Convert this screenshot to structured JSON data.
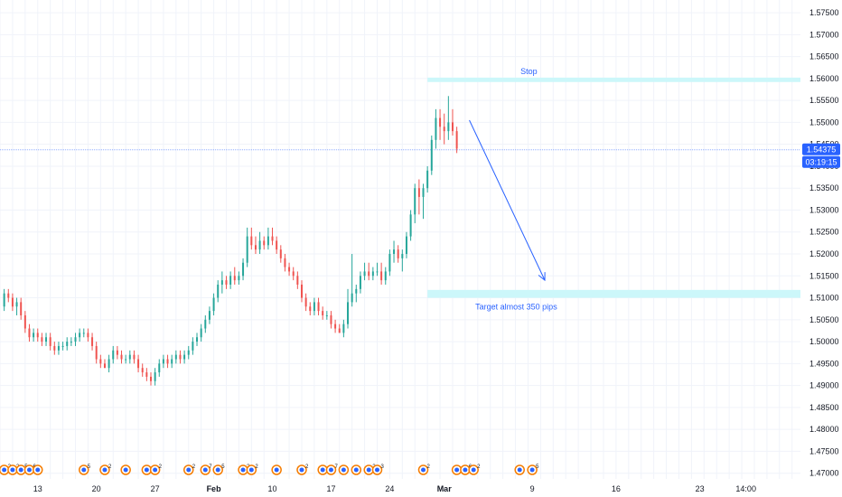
{
  "chart_data": {
    "type": "candlestick",
    "y_ticks": [
      1.47,
      1.475,
      1.48,
      1.485,
      1.49,
      1.495,
      1.5,
      1.505,
      1.51,
      1.515,
      1.52,
      1.525,
      1.53,
      1.535,
      1.54,
      1.545,
      1.55,
      1.555,
      1.56,
      1.565,
      1.57,
      1.575
    ],
    "y_tick_labels": [
      "1.47000",
      "1.47500",
      "1.48000",
      "1.48500",
      "1.49000",
      "1.49500",
      "1.50000",
      "1.50500",
      "1.51000",
      "1.51500",
      "1.52000",
      "1.52500",
      "1.53000",
      "1.53500",
      "1.54000",
      "1.54500",
      "1.55000",
      "1.55500",
      "1.56000",
      "1.56500",
      "1.57000",
      "1.57500"
    ],
    "ylim": [
      1.4687,
      1.5779
    ],
    "x_ticks": [
      {
        "label": "13",
        "bar": 8,
        "bold": false
      },
      {
        "label": "20",
        "bar": 22,
        "bold": false
      },
      {
        "label": "27",
        "bar": 36,
        "bold": false
      },
      {
        "label": "Feb",
        "bar": 50,
        "bold": true
      },
      {
        "label": "10",
        "bar": 64,
        "bold": false
      },
      {
        "label": "17",
        "bar": 78,
        "bold": false
      },
      {
        "label": "24",
        "bar": 92,
        "bold": false
      },
      {
        "label": "Mar",
        "bar": 105,
        "bold": true
      },
      {
        "label": "9",
        "bar": 126,
        "bold": false
      },
      {
        "label": "16",
        "bar": 146,
        "bold": false
      },
      {
        "label": "23",
        "bar": 166,
        "bold": false
      },
      {
        "label": "14:00",
        "bar": 177,
        "bold": false
      }
    ],
    "x_range_bars": [
      -1,
      190
    ],
    "current_price": {
      "label": "1.54375",
      "value": 1.54375,
      "countdown": "03:19:15"
    },
    "candles": [
      {
        "o": 1.508,
        "h": 1.512,
        "l": 1.507,
        "c": 1.511
      },
      {
        "o": 1.511,
        "h": 1.512,
        "l": 1.509,
        "c": 1.51
      },
      {
        "o": 1.51,
        "h": 1.511,
        "l": 1.507,
        "c": 1.508
      },
      {
        "o": 1.508,
        "h": 1.51,
        "l": 1.506,
        "c": 1.509
      },
      {
        "o": 1.509,
        "h": 1.51,
        "l": 1.505,
        "c": 1.506
      },
      {
        "o": 1.506,
        "h": 1.507,
        "l": 1.502,
        "c": 1.503
      },
      {
        "o": 1.503,
        "h": 1.504,
        "l": 1.5,
        "c": 1.501
      },
      {
        "o": 1.501,
        "h": 1.503,
        "l": 1.5,
        "c": 1.502
      },
      {
        "o": 1.502,
        "h": 1.503,
        "l": 1.5,
        "c": 1.501
      },
      {
        "o": 1.501,
        "h": 1.502,
        "l": 1.499,
        "c": 1.5
      },
      {
        "o": 1.5,
        "h": 1.502,
        "l": 1.499,
        "c": 1.501
      },
      {
        "o": 1.501,
        "h": 1.502,
        "l": 1.498,
        "c": 1.499
      },
      {
        "o": 1.499,
        "h": 1.5,
        "l": 1.497,
        "c": 1.498
      },
      {
        "o": 1.498,
        "h": 1.5,
        "l": 1.497,
        "c": 1.499
      },
      {
        "o": 1.499,
        "h": 1.5,
        "l": 1.498,
        "c": 1.499
      },
      {
        "o": 1.499,
        "h": 1.501,
        "l": 1.498,
        "c": 1.5
      },
      {
        "o": 1.5,
        "h": 1.501,
        "l": 1.499,
        "c": 1.5
      },
      {
        "o": 1.5,
        "h": 1.502,
        "l": 1.499,
        "c": 1.501
      },
      {
        "o": 1.501,
        "h": 1.503,
        "l": 1.5,
        "c": 1.502
      },
      {
        "o": 1.502,
        "h": 1.503,
        "l": 1.501,
        "c": 1.502
      },
      {
        "o": 1.502,
        "h": 1.503,
        "l": 1.5,
        "c": 1.501
      },
      {
        "o": 1.501,
        "h": 1.502,
        "l": 1.498,
        "c": 1.499
      },
      {
        "o": 1.499,
        "h": 1.5,
        "l": 1.495,
        "c": 1.496
      },
      {
        "o": 1.496,
        "h": 1.497,
        "l": 1.494,
        "c": 1.495
      },
      {
        "o": 1.495,
        "h": 1.496,
        "l": 1.494,
        "c": 1.494
      },
      {
        "o": 1.494,
        "h": 1.497,
        "l": 1.493,
        "c": 1.496
      },
      {
        "o": 1.496,
        "h": 1.499,
        "l": 1.495,
        "c": 1.498
      },
      {
        "o": 1.498,
        "h": 1.499,
        "l": 1.496,
        "c": 1.497
      },
      {
        "o": 1.497,
        "h": 1.498,
        "l": 1.495,
        "c": 1.496
      },
      {
        "o": 1.496,
        "h": 1.497,
        "l": 1.495,
        "c": 1.496
      },
      {
        "o": 1.496,
        "h": 1.498,
        "l": 1.495,
        "c": 1.497
      },
      {
        "o": 1.497,
        "h": 1.498,
        "l": 1.495,
        "c": 1.496
      },
      {
        "o": 1.496,
        "h": 1.497,
        "l": 1.493,
        "c": 1.494
      },
      {
        "o": 1.494,
        "h": 1.495,
        "l": 1.492,
        "c": 1.493
      },
      {
        "o": 1.493,
        "h": 1.494,
        "l": 1.491,
        "c": 1.492
      },
      {
        "o": 1.492,
        "h": 1.493,
        "l": 1.49,
        "c": 1.491
      },
      {
        "o": 1.491,
        "h": 1.494,
        "l": 1.49,
        "c": 1.493
      },
      {
        "o": 1.493,
        "h": 1.496,
        "l": 1.492,
        "c": 1.495
      },
      {
        "o": 1.495,
        "h": 1.497,
        "l": 1.494,
        "c": 1.496
      },
      {
        "o": 1.496,
        "h": 1.497,
        "l": 1.494,
        "c": 1.495
      },
      {
        "o": 1.495,
        "h": 1.497,
        "l": 1.494,
        "c": 1.496
      },
      {
        "o": 1.496,
        "h": 1.498,
        "l": 1.495,
        "c": 1.497
      },
      {
        "o": 1.497,
        "h": 1.498,
        "l": 1.495,
        "c": 1.496
      },
      {
        "o": 1.496,
        "h": 1.498,
        "l": 1.495,
        "c": 1.497
      },
      {
        "o": 1.497,
        "h": 1.499,
        "l": 1.496,
        "c": 1.498
      },
      {
        "o": 1.498,
        "h": 1.501,
        "l": 1.497,
        "c": 1.5
      },
      {
        "o": 1.5,
        "h": 1.502,
        "l": 1.499,
        "c": 1.501
      },
      {
        "o": 1.501,
        "h": 1.504,
        "l": 1.5,
        "c": 1.503
      },
      {
        "o": 1.503,
        "h": 1.506,
        "l": 1.502,
        "c": 1.505
      },
      {
        "o": 1.505,
        "h": 1.508,
        "l": 1.504,
        "c": 1.507
      },
      {
        "o": 1.507,
        "h": 1.511,
        "l": 1.506,
        "c": 1.51
      },
      {
        "o": 1.51,
        "h": 1.514,
        "l": 1.509,
        "c": 1.513
      },
      {
        "o": 1.513,
        "h": 1.516,
        "l": 1.511,
        "c": 1.514
      },
      {
        "o": 1.514,
        "h": 1.515,
        "l": 1.512,
        "c": 1.513
      },
      {
        "o": 1.513,
        "h": 1.516,
        "l": 1.512,
        "c": 1.515
      },
      {
        "o": 1.515,
        "h": 1.517,
        "l": 1.513,
        "c": 1.514
      },
      {
        "o": 1.514,
        "h": 1.516,
        "l": 1.513,
        "c": 1.515
      },
      {
        "o": 1.515,
        "h": 1.519,
        "l": 1.514,
        "c": 1.518
      },
      {
        "o": 1.518,
        "h": 1.526,
        "l": 1.517,
        "c": 1.524
      },
      {
        "o": 1.524,
        "h": 1.526,
        "l": 1.521,
        "c": 1.522
      },
      {
        "o": 1.522,
        "h": 1.524,
        "l": 1.52,
        "c": 1.521
      },
      {
        "o": 1.521,
        "h": 1.525,
        "l": 1.52,
        "c": 1.523
      },
      {
        "o": 1.523,
        "h": 1.524,
        "l": 1.521,
        "c": 1.522
      },
      {
        "o": 1.522,
        "h": 1.526,
        "l": 1.521,
        "c": 1.524
      },
      {
        "o": 1.524,
        "h": 1.526,
        "l": 1.522,
        "c": 1.523
      },
      {
        "o": 1.523,
        "h": 1.524,
        "l": 1.52,
        "c": 1.521
      },
      {
        "o": 1.521,
        "h": 1.522,
        "l": 1.518,
        "c": 1.519
      },
      {
        "o": 1.519,
        "h": 1.52,
        "l": 1.516,
        "c": 1.517
      },
      {
        "o": 1.517,
        "h": 1.518,
        "l": 1.515,
        "c": 1.516
      },
      {
        "o": 1.516,
        "h": 1.517,
        "l": 1.514,
        "c": 1.515
      },
      {
        "o": 1.515,
        "h": 1.516,
        "l": 1.512,
        "c": 1.513
      },
      {
        "o": 1.513,
        "h": 1.514,
        "l": 1.509,
        "c": 1.51
      },
      {
        "o": 1.51,
        "h": 1.511,
        "l": 1.507,
        "c": 1.508
      },
      {
        "o": 1.508,
        "h": 1.509,
        "l": 1.506,
        "c": 1.507
      },
      {
        "o": 1.507,
        "h": 1.51,
        "l": 1.506,
        "c": 1.509
      },
      {
        "o": 1.509,
        "h": 1.51,
        "l": 1.506,
        "c": 1.507
      },
      {
        "o": 1.507,
        "h": 1.508,
        "l": 1.505,
        "c": 1.506
      },
      {
        "o": 1.506,
        "h": 1.507,
        "l": 1.505,
        "c": 1.506
      },
      {
        "o": 1.506,
        "h": 1.507,
        "l": 1.503,
        "c": 1.504
      },
      {
        "o": 1.504,
        "h": 1.505,
        "l": 1.502,
        "c": 1.503
      },
      {
        "o": 1.503,
        "h": 1.504,
        "l": 1.502,
        "c": 1.502
      },
      {
        "o": 1.502,
        "h": 1.505,
        "l": 1.501,
        "c": 1.504
      },
      {
        "o": 1.504,
        "h": 1.512,
        "l": 1.503,
        "c": 1.509
      },
      {
        "o": 1.509,
        "h": 1.52,
        "l": 1.508,
        "c": 1.511
      },
      {
        "o": 1.511,
        "h": 1.513,
        "l": 1.509,
        "c": 1.512
      },
      {
        "o": 1.512,
        "h": 1.516,
        "l": 1.511,
        "c": 1.515
      },
      {
        "o": 1.515,
        "h": 1.518,
        "l": 1.514,
        "c": 1.516
      },
      {
        "o": 1.516,
        "h": 1.518,
        "l": 1.514,
        "c": 1.515
      },
      {
        "o": 1.515,
        "h": 1.517,
        "l": 1.514,
        "c": 1.516
      },
      {
        "o": 1.516,
        "h": 1.518,
        "l": 1.515,
        "c": 1.516
      },
      {
        "o": 1.516,
        "h": 1.518,
        "l": 1.513,
        "c": 1.514
      },
      {
        "o": 1.514,
        "h": 1.517,
        "l": 1.513,
        "c": 1.516
      },
      {
        "o": 1.516,
        "h": 1.521,
        "l": 1.515,
        "c": 1.52
      },
      {
        "o": 1.52,
        "h": 1.523,
        "l": 1.518,
        "c": 1.521
      },
      {
        "o": 1.521,
        "h": 1.522,
        "l": 1.518,
        "c": 1.519
      },
      {
        "o": 1.519,
        "h": 1.521,
        "l": 1.516,
        "c": 1.52
      },
      {
        "o": 1.52,
        "h": 1.525,
        "l": 1.519,
        "c": 1.524
      },
      {
        "o": 1.524,
        "h": 1.53,
        "l": 1.523,
        "c": 1.529
      },
      {
        "o": 1.529,
        "h": 1.536,
        "l": 1.527,
        "c": 1.535
      },
      {
        "o": 1.535,
        "h": 1.537,
        "l": 1.529,
        "c": 1.533
      },
      {
        "o": 1.533,
        "h": 1.536,
        "l": 1.528,
        "c": 1.535
      },
      {
        "o": 1.535,
        "h": 1.54,
        "l": 1.534,
        "c": 1.539
      },
      {
        "o": 1.539,
        "h": 1.547,
        "l": 1.538,
        "c": 1.546
      },
      {
        "o": 1.546,
        "h": 1.553,
        "l": 1.544,
        "c": 1.551
      },
      {
        "o": 1.551,
        "h": 1.553,
        "l": 1.546,
        "c": 1.549
      },
      {
        "o": 1.549,
        "h": 1.552,
        "l": 1.545,
        "c": 1.548
      },
      {
        "o": 1.548,
        "h": 1.556,
        "l": 1.546,
        "c": 1.55
      },
      {
        "o": 1.55,
        "h": 1.553,
        "l": 1.547,
        "c": 1.548
      },
      {
        "o": 1.548,
        "h": 1.549,
        "l": 1.543,
        "c": 1.544
      }
    ],
    "annotations": {
      "stop_zone": {
        "label": "Stop",
        "from": 1.5592,
        "to": 1.5602,
        "x_start_bar": 101
      },
      "target_zone": {
        "label": "Target almost 350 pips",
        "from": 1.51,
        "to": 1.5118,
        "x_start_bar": 101
      },
      "arrow": {
        "from_bar": 111,
        "from_price": 1.5505,
        "to_bar": 129,
        "to_price": 1.514
      }
    },
    "event_markers": [
      {
        "bar": 0,
        "text": "2"
      },
      {
        "bar": 2,
        "text": "2"
      },
      {
        "bar": 4,
        "text": "5"
      },
      {
        "bar": 6,
        "text": "6"
      },
      {
        "bar": 8,
        "text": ""
      },
      {
        "bar": 19,
        "text": "5"
      },
      {
        "bar": 24,
        "text": "2"
      },
      {
        "bar": 29,
        "text": ""
      },
      {
        "bar": 34,
        "text": ""
      },
      {
        "bar": 36,
        "text": "2"
      },
      {
        "bar": 44,
        "text": "2"
      },
      {
        "bar": 48,
        "text": "7"
      },
      {
        "bar": 51,
        "text": "5"
      },
      {
        "bar": 57,
        "text": "2"
      },
      {
        "bar": 59,
        "text": "2"
      },
      {
        "bar": 65,
        "text": ""
      },
      {
        "bar": 71,
        "text": "2"
      },
      {
        "bar": 76,
        "text": ""
      },
      {
        "bar": 78,
        "text": "7"
      },
      {
        "bar": 81,
        "text": ""
      },
      {
        "bar": 84,
        "text": ""
      },
      {
        "bar": 87,
        "text": "2"
      },
      {
        "bar": 89,
        "text": "3"
      },
      {
        "bar": 100,
        "text": "2"
      },
      {
        "bar": 108,
        "text": ""
      },
      {
        "bar": 110,
        "text": "6"
      },
      {
        "bar": 112,
        "text": "2"
      },
      {
        "bar": 123,
        "text": ""
      },
      {
        "bar": 126,
        "text": "5"
      }
    ],
    "colors": {
      "up": "#26a69a",
      "down": "#ef5350",
      "zone": "#ccf7fa",
      "annotation": "#2962ff",
      "price_line": "#2962ff",
      "grid": "#f0f3fa"
    }
  }
}
